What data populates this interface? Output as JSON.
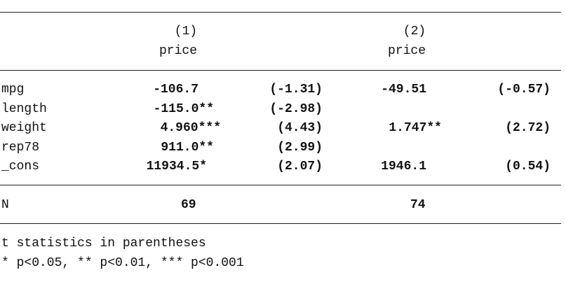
{
  "table": {
    "header": {
      "columns": [
        {
          "number": "(1)",
          "depvar": "price"
        },
        {
          "number": "(2)",
          "depvar": "price"
        }
      ]
    },
    "rows": [
      {
        "label": "mpg",
        "coef1": "-106.7",
        "t1": "(-1.31)",
        "coef2": "-49.51",
        "t2": "(-0.57)"
      },
      {
        "label": "length",
        "coef1": "-115.0**",
        "t1": "(-2.98)"
      },
      {
        "label": "weight",
        "coef1": "4.960***",
        "t1": "(4.43)",
        "coef2": "1.747**",
        "t2": "(2.72)"
      },
      {
        "label": "rep78",
        "coef1": "911.0**",
        "t1": "(2.99)"
      },
      {
        "label": "_cons",
        "coef1": "11934.5*",
        "t1": "(2.07)",
        "coef2": "1946.1",
        "t2": "(0.54)"
      }
    ],
    "n_row": {
      "label": "N",
      "n1": "69",
      "n2": "74"
    },
    "notes": [
      "t statistics in parentheses",
      "* p<0.05, ** p<0.01, *** p<0.001"
    ]
  }
}
